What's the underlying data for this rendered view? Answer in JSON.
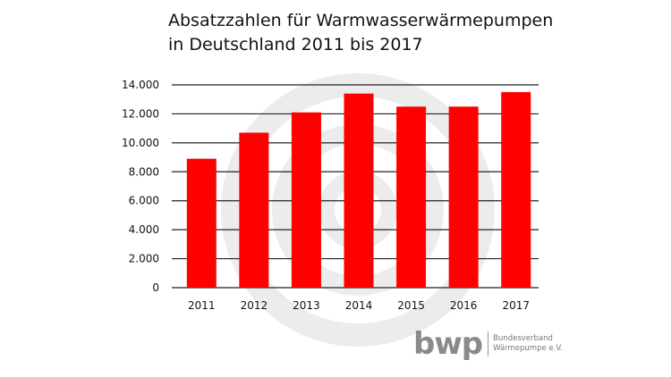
{
  "chart_data": {
    "type": "bar",
    "title_lines": [
      "Absatzzahlen für Warmwasserwärmepumpen",
      "in Deutschland 2011 bis 2017"
    ],
    "categories": [
      "2011",
      "2012",
      "2013",
      "2014",
      "2015",
      "2016",
      "2017"
    ],
    "values": [
      8900,
      10700,
      12100,
      13400,
      12500,
      12500,
      13500
    ],
    "ylim": [
      0,
      14000
    ],
    "yticks": [
      0,
      2000,
      4000,
      6000,
      8000,
      10000,
      12000,
      14000
    ],
    "ytick_labels": [
      "0",
      "2.000",
      "4.000",
      "6.000",
      "8.000",
      "10.000",
      "12.000",
      "14.000"
    ],
    "grid": true,
    "bar_color": "#ff0000",
    "xlabel": "",
    "ylabel": ""
  },
  "logo": {
    "mark": "bwp",
    "line1": "Bundesverband",
    "line2": "Wärmepumpe e.V."
  }
}
